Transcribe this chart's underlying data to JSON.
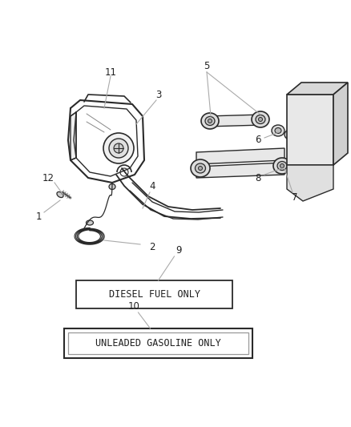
{
  "bg_color": "#ffffff",
  "lc": "#2a2a2a",
  "lc_light": "#888888",
  "lc_lead": "#aaaaaa",
  "box1_text": "DIESEL FUEL ONLY",
  "box2_text": "UNLEADED GASOLINE ONLY",
  "figsize": [
    4.38,
    5.33
  ],
  "dpi": 100
}
